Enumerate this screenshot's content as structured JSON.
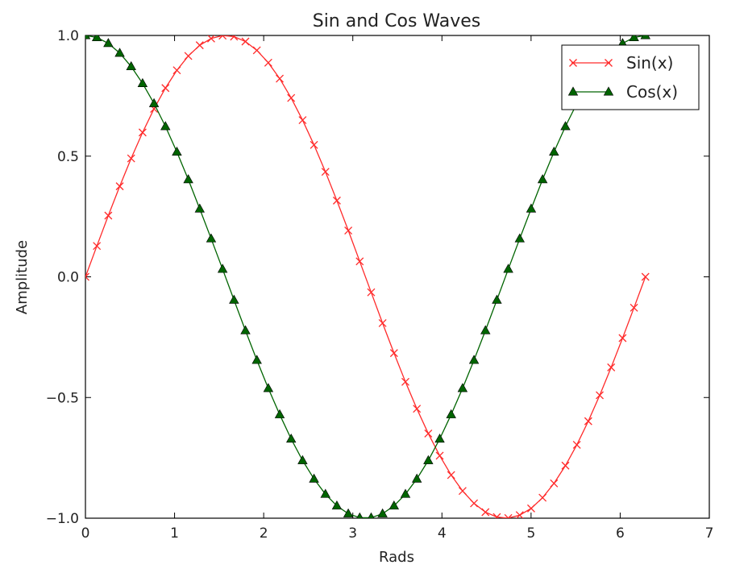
{
  "chart_data": {
    "type": "line",
    "title": "Sin and Cos Waves",
    "xlabel": "Rads",
    "ylabel": "Amplitude",
    "xlim": [
      0,
      7
    ],
    "ylim": [
      -1.0,
      1.0
    ],
    "x_ticks": [
      "0",
      "1",
      "2",
      "3",
      "4",
      "5",
      "6",
      "7"
    ],
    "y_ticks": [
      "1.0",
      "0.5",
      "0.0",
      "−0.5",
      "−1.0"
    ],
    "grid": false,
    "legend_position": "top-right",
    "x": [
      0.0,
      0.1282,
      0.2565,
      0.3847,
      0.5129,
      0.6411,
      0.7694,
      0.8976,
      1.0258,
      1.1541,
      1.2823,
      1.4105,
      1.5387,
      1.667,
      1.7952,
      1.9234,
      2.0517,
      2.1799,
      2.3081,
      2.4363,
      2.5646,
      2.6928,
      2.821,
      2.9493,
      3.0775,
      3.2057,
      3.3339,
      3.4622,
      3.5904,
      3.7186,
      3.8468,
      3.9751,
      4.1033,
      4.2315,
      4.3598,
      4.488,
      4.6162,
      4.7444,
      4.8727,
      5.0009,
      5.1291,
      5.2574,
      5.3856,
      5.5138,
      5.642,
      5.7703,
      5.8985,
      6.0267,
      6.155,
      6.2832
    ],
    "series": [
      {
        "name": "Sin(x)",
        "color": "#ff2a2a",
        "marker": "x",
        "values": [
          0.0,
          0.1279,
          0.2537,
          0.3752,
          0.4907,
          0.5981,
          0.6959,
          0.7822,
          0.8557,
          0.9151,
          0.9595,
          0.9874,
          0.9995,
          0.9954,
          0.9749,
          0.9384,
          0.8871,
          0.8212,
          0.7411,
          0.6491,
          0.5466,
          0.4351,
          0.3159,
          0.1919,
          0.0641,
          -0.0641,
          -0.1919,
          -0.3159,
          -0.4351,
          -0.5466,
          -0.6491,
          -0.7411,
          -0.8212,
          -0.8871,
          -0.9384,
          -0.9749,
          -0.9954,
          -0.9995,
          -0.9874,
          -0.9595,
          -0.9151,
          -0.8557,
          -0.7822,
          -0.6959,
          -0.5981,
          -0.4907,
          -0.3752,
          -0.2537,
          -0.1279,
          0.0
        ]
      },
      {
        "name": "Cos(x)",
        "color": "#006400",
        "marker": "triangle",
        "values": [
          1.0,
          0.9918,
          0.9673,
          0.9269,
          0.8713,
          0.8014,
          0.7183,
          0.6231,
          0.5175,
          0.4032,
          0.2817,
          0.158,
          0.032,
          -0.096,
          -0.2225,
          -0.3453,
          -0.462,
          -0.5707,
          -0.6716,
          -0.7609,
          -0.8372,
          -0.9004,
          -0.9488,
          -0.9814,
          -0.9979,
          -0.9979,
          -0.9814,
          -0.9488,
          -0.9004,
          -0.8372,
          -0.7609,
          -0.6716,
          -0.5707,
          -0.462,
          -0.3453,
          -0.2225,
          -0.096,
          0.032,
          0.158,
          0.2817,
          0.4032,
          0.5175,
          0.6231,
          0.7183,
          0.8014,
          0.8713,
          0.9269,
          0.9673,
          0.9918,
          1.0
        ]
      }
    ]
  }
}
